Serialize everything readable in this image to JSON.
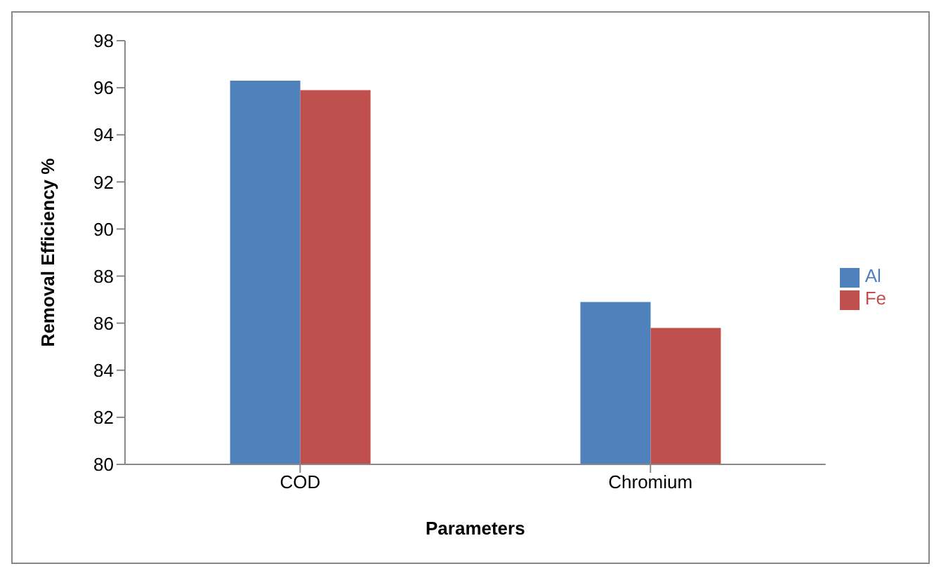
{
  "chart_data": {
    "type": "bar",
    "xlabel": "Parameters",
    "ylabel": "Removal Efficiency %",
    "categories": [
      "COD",
      "Chromium"
    ],
    "series": [
      {
        "name": "Al",
        "color": "#4f81bd",
        "values": [
          96.3,
          86.9
        ]
      },
      {
        "name": "Fe",
        "color": "#c0504d",
        "values": [
          95.9,
          85.8
        ]
      }
    ],
    "ylim": [
      80,
      98
    ],
    "yticks": [
      80,
      82,
      84,
      86,
      88,
      90,
      92,
      94,
      96,
      98
    ],
    "grid": false,
    "legend": "right"
  }
}
